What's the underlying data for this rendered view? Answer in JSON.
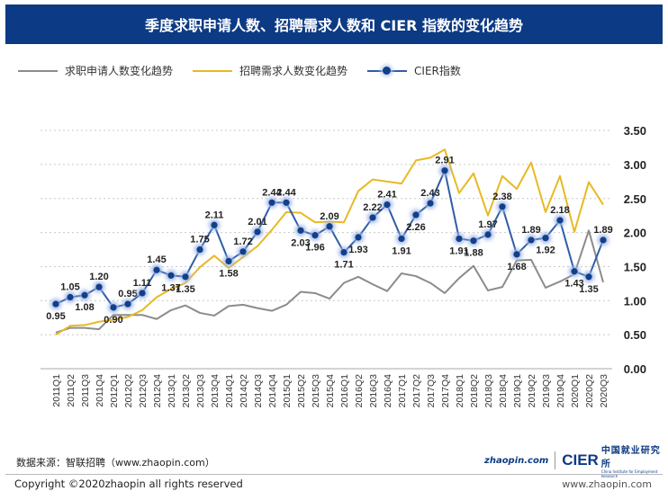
{
  "header": {
    "title": "季度求职申请人数、招聘需求人数和 CIER 指数的变化趋势"
  },
  "colors": {
    "header_bg": "#0c3a84",
    "applicants": "#8c8c8c",
    "demand": "#e8b923",
    "cier": "#2f5da8",
    "cier_marker": "#123f8a"
  },
  "chart_data": {
    "type": "line",
    "title": "季度求职申请人数、招聘需求人数和 CIER 指数的变化趋势",
    "legend_position": "top-left",
    "grid": "horizontal dotted",
    "ylim": [
      0,
      3.5
    ],
    "y_ticks": [
      "0.00",
      "0.50",
      "1.00",
      "1.50",
      "2.00",
      "2.50",
      "3.00",
      "3.50"
    ],
    "categories": [
      "2011Q1",
      "2011Q2",
      "2011Q3",
      "2011Q4",
      "2012Q1",
      "2012Q2",
      "2012Q3",
      "2012Q4",
      "2013Q1",
      "2013Q2",
      "2013Q3",
      "2013Q4",
      "2014Q1",
      "2014Q2",
      "2014Q3",
      "2014Q4",
      "2015Q1",
      "2015Q2",
      "2015Q3",
      "2015Q4",
      "2016Q1",
      "2016Q2",
      "2016Q3",
      "2016Q4",
      "2017Q1",
      "2017Q2",
      "2017Q3",
      "2017Q4",
      "2018Q1",
      "2018Q2",
      "2018Q3",
      "2018Q4",
      "2019Q1",
      "2019Q2",
      "2019Q3",
      "2019Q4",
      "2020Q1",
      "2020Q2",
      "2020Q3"
    ],
    "series": [
      {
        "name": "求职申请人数变化趋势",
        "values": [
          0.53,
          0.6,
          0.6,
          0.58,
          0.79,
          0.79,
          0.79,
          0.73,
          0.86,
          0.93,
          0.82,
          0.78,
          0.92,
          0.94,
          0.89,
          0.85,
          0.94,
          1.13,
          1.11,
          1.03,
          1.26,
          1.35,
          1.24,
          1.14,
          1.4,
          1.36,
          1.26,
          1.11,
          1.33,
          1.51,
          1.15,
          1.2,
          1.59,
          1.6,
          1.19,
          1.28,
          1.39,
          2.03,
          1.27
        ]
      },
      {
        "name": "招聘需求人数变化趋势",
        "values": [
          0.5,
          0.63,
          0.64,
          0.69,
          0.72,
          0.76,
          0.86,
          1.05,
          1.17,
          1.26,
          1.49,
          1.66,
          1.48,
          1.64,
          1.8,
          2.04,
          2.3,
          2.29,
          2.15,
          2.16,
          2.15,
          2.61,
          2.78,
          2.75,
          2.72,
          3.06,
          3.1,
          3.22,
          2.58,
          2.87,
          2.25,
          2.83,
          2.64,
          3.03,
          2.3,
          2.83,
          2.01,
          2.74,
          2.41
        ]
      },
      {
        "name": "CIER指数",
        "values": [
          0.95,
          1.05,
          1.08,
          1.2,
          0.9,
          0.95,
          1.11,
          1.45,
          1.37,
          1.35,
          1.75,
          2.11,
          1.58,
          1.72,
          2.01,
          2.44,
          2.44,
          2.03,
          1.96,
          2.09,
          1.71,
          1.93,
          2.22,
          2.41,
          1.91,
          2.26,
          2.43,
          2.91,
          1.91,
          1.88,
          1.97,
          2.38,
          1.68,
          1.89,
          1.92,
          2.18,
          1.43,
          1.35,
          1.89
        ],
        "labels": [
          "0.95",
          "1.05",
          "1.08",
          "1.20",
          "0.90",
          "0.95",
          "1.11",
          "1.45",
          "1.37",
          "1.35",
          "1.75",
          "2.11",
          "1.58",
          "1.72",
          "2.01",
          "2.44",
          "2.44",
          "2.03",
          "1.96",
          "2.09",
          "1.71",
          "1.93",
          "2.22",
          "2.41",
          "1.91",
          "2.26",
          "2.43",
          "2.91",
          "1.91",
          "1.88",
          "1.97",
          "2.38",
          "1.68",
          "1.89",
          "1.92",
          "2.18",
          "1.43",
          "1.35",
          "1.89"
        ]
      }
    ]
  },
  "footer": {
    "source": "数据来源：智联招聘（www.zhaopin.com）",
    "copyright": "Copyright ©2020zhaopin all rights reserved",
    "url": "www.zhaopin.com",
    "logo_zhaopin": "zhaopin.com 智联招聘",
    "logo_cier": "CIER",
    "logo_cier_cn": "中国就业研究所",
    "logo_cier_en": "China Institute for Employment Research"
  }
}
